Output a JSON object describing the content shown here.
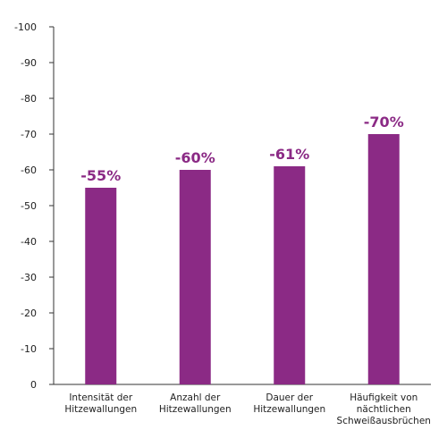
{
  "chart_data": {
    "type": "bar",
    "title": "",
    "xlabel": "",
    "ylabel": "",
    "categories": [
      "Intensität der Hitzewallungen",
      "Anzahl der Hitzewallungen",
      "Dauer der Hitzewallungen",
      "Häufigkeit von nächtlichen Schweißausbrüchen"
    ],
    "category_lines": [
      [
        "Intensität der",
        "Hitzewallungen"
      ],
      [
        "Anzahl der",
        "Hitzewallungen"
      ],
      [
        "Dauer der",
        "Hitzewallungen"
      ],
      [
        "Häufigkeit von",
        "nächtlichen",
        "Schweißausbrüchen"
      ]
    ],
    "values": [
      -55,
      -60,
      -61,
      -70
    ],
    "data_labels": [
      "-55%",
      "-60%",
      "-61%",
      "-70%"
    ],
    "ylim": [
      0,
      -100
    ],
    "yticks": [
      "0",
      "-10",
      "-20",
      "-30",
      "-40",
      "-50",
      "-60",
      "-70",
      "-80",
      "-90",
      "-100"
    ],
    "grid": false,
    "legend": "none",
    "bar_color": "#8b2a85"
  }
}
